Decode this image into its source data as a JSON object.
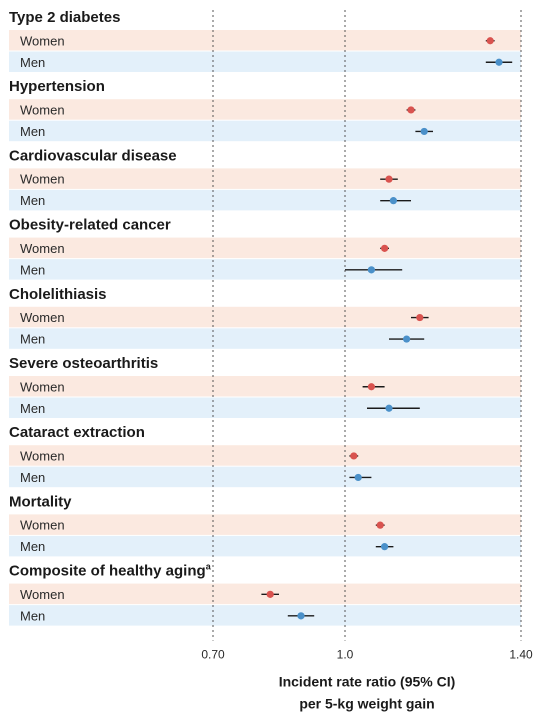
{
  "chart_data": {
    "type": "forest",
    "xlabel": [
      "Incident rate ratio (95% CI)",
      "per 5-kg weight gain"
    ],
    "xlim": [
      0.7,
      1.4
    ],
    "ticks": [
      {
        "value": 0.7,
        "label": "0.70"
      },
      {
        "value": 1.0,
        "label": "1.0"
      },
      {
        "value": 1.4,
        "label": "1.40"
      }
    ],
    "colors": {
      "women_marker": "#d9534f",
      "men_marker": "#4a90c9",
      "women_band": "#fbe9e0",
      "men_band": "#e3f0fa",
      "ci_line": "#1a1a1a"
    },
    "groups": [
      {
        "title": "Type 2 diabetes",
        "superscript": "",
        "rows": [
          {
            "label": "Women",
            "sex": "women",
            "estimate": 1.33,
            "ci": [
              1.32,
              1.34
            ]
          },
          {
            "label": "Men",
            "sex": "men",
            "estimate": 1.35,
            "ci": [
              1.32,
              1.38
            ]
          }
        ]
      },
      {
        "title": "Hypertension",
        "superscript": "",
        "rows": [
          {
            "label": "Women",
            "sex": "women",
            "estimate": 1.15,
            "ci": [
              1.14,
              1.16
            ]
          },
          {
            "label": "Men",
            "sex": "men",
            "estimate": 1.18,
            "ci": [
              1.16,
              1.2
            ]
          }
        ]
      },
      {
        "title": "Cardiovascular disease",
        "superscript": "",
        "rows": [
          {
            "label": "Women",
            "sex": "women",
            "estimate": 1.1,
            "ci": [
              1.08,
              1.12
            ]
          },
          {
            "label": "Men",
            "sex": "men",
            "estimate": 1.11,
            "ci": [
              1.08,
              1.15
            ]
          }
        ]
      },
      {
        "title": "Obesity-related cancer",
        "superscript": "",
        "rows": [
          {
            "label": "Women",
            "sex": "women",
            "estimate": 1.09,
            "ci": [
              1.08,
              1.1
            ]
          },
          {
            "label": "Men",
            "sex": "men",
            "estimate": 1.06,
            "ci": [
              1.0,
              1.13
            ]
          }
        ]
      },
      {
        "title": "Cholelithiasis",
        "superscript": "",
        "rows": [
          {
            "label": "Women",
            "sex": "women",
            "estimate": 1.17,
            "ci": [
              1.15,
              1.19
            ]
          },
          {
            "label": "Men",
            "sex": "men",
            "estimate": 1.14,
            "ci": [
              1.1,
              1.18
            ]
          }
        ]
      },
      {
        "title": "Severe osteoarthritis",
        "superscript": "",
        "rows": [
          {
            "label": "Women",
            "sex": "women",
            "estimate": 1.06,
            "ci": [
              1.04,
              1.09
            ]
          },
          {
            "label": "Men",
            "sex": "men",
            "estimate": 1.1,
            "ci": [
              1.05,
              1.17
            ]
          }
        ]
      },
      {
        "title": "Cataract extraction",
        "superscript": "",
        "rows": [
          {
            "label": "Women",
            "sex": "women",
            "estimate": 1.02,
            "ci": [
              1.01,
              1.03
            ]
          },
          {
            "label": "Men",
            "sex": "men",
            "estimate": 1.03,
            "ci": [
              1.01,
              1.06
            ]
          }
        ]
      },
      {
        "title": "Mortality",
        "superscript": "",
        "rows": [
          {
            "label": "Women",
            "sex": "women",
            "estimate": 1.08,
            "ci": [
              1.07,
              1.09
            ]
          },
          {
            "label": "Men",
            "sex": "men",
            "estimate": 1.09,
            "ci": [
              1.07,
              1.11
            ]
          }
        ]
      },
      {
        "title": "Composite of healthy aging",
        "superscript": "a",
        "rows": [
          {
            "label": "Women",
            "sex": "women",
            "estimate": 0.83,
            "ci": [
              0.81,
              0.85
            ]
          },
          {
            "label": "Men",
            "sex": "men",
            "estimate": 0.9,
            "ci": [
              0.87,
              0.93
            ]
          }
        ]
      }
    ]
  }
}
